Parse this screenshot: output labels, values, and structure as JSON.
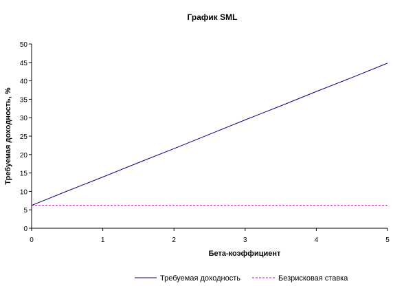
{
  "chart_data": {
    "type": "line",
    "title": "График SML",
    "xlabel": "Бета-коэффициент",
    "ylabel": "Требуемая доходность, %",
    "xlim": [
      0,
      5
    ],
    "ylim": [
      0,
      50
    ],
    "x_ticks": [
      "0",
      "1",
      "2",
      "3",
      "4",
      "5"
    ],
    "y_ticks": [
      "0",
      "5",
      "10",
      "15",
      "20",
      "25",
      "30",
      "35",
      "40",
      "45",
      "50"
    ],
    "grid": false,
    "legend_position": "bottom",
    "series": [
      {
        "name": "Требуемая доходность",
        "color": "#000080",
        "style": "solid",
        "x": [
          0,
          0.5,
          1,
          1.5,
          2,
          2.5,
          3,
          3.5,
          4,
          4.5,
          5
        ],
        "values": [
          6.2,
          10.1,
          13.9,
          17.8,
          21.6,
          25.5,
          29.4,
          33.2,
          37.1,
          40.9,
          44.8
        ]
      },
      {
        "name": "Безрисковая ставка",
        "color": "#cc00cc",
        "style": "dashed",
        "x": [
          0,
          5
        ],
        "values": [
          6.2,
          6.2
        ]
      }
    ]
  }
}
